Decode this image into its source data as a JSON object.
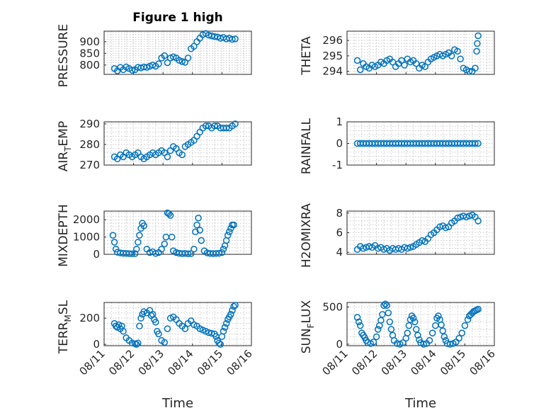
{
  "figure": {
    "title": "Figure 1 high",
    "time_label": "Time",
    "date_ticks": [
      "08/11",
      "08/12",
      "08/13",
      "08/14",
      "08/15",
      "08/16"
    ],
    "marker_color": "#0072bd"
  },
  "chart_data": [
    {
      "type": "scatter",
      "name": "pressure",
      "ylabel": "PRESSURE",
      "ylim": [
        760,
        945
      ],
      "yticks": [
        800,
        850,
        900
      ],
      "x": [
        11.35,
        11.45,
        11.55,
        11.65,
        11.75,
        11.85,
        11.95,
        12.05,
        12.15,
        12.25,
        12.35,
        12.45,
        12.55,
        12.65,
        12.75,
        12.85,
        12.95,
        13.05,
        13.15,
        13.25,
        13.35,
        13.45,
        13.55,
        13.65,
        13.75,
        13.85,
        13.95,
        14.05,
        14.15,
        14.25,
        14.35,
        14.45,
        14.55,
        14.65,
        14.75,
        14.85,
        14.95,
        15.05,
        15.15,
        15.25,
        15.35,
        15.45
      ],
      "y": [
        785,
        775,
        790,
        780,
        792,
        785,
        778,
        780,
        790,
        788,
        792,
        790,
        795,
        800,
        795,
        805,
        830,
        840,
        810,
        830,
        835,
        830,
        820,
        815,
        812,
        830,
        870,
        880,
        900,
        915,
        930,
        935,
        928,
        925,
        922,
        920,
        915,
        918,
        912,
        915,
        910,
        912
      ]
    },
    {
      "type": "scatter",
      "name": "theta",
      "ylabel": "THETA",
      "ylim": [
        293.8,
        296.6
      ],
      "yticks": [
        294,
        295,
        296
      ],
      "x": [
        11.35,
        11.45,
        11.55,
        11.65,
        11.75,
        11.85,
        11.95,
        12.05,
        12.15,
        12.25,
        12.35,
        12.45,
        12.55,
        12.65,
        12.75,
        12.85,
        12.95,
        13.05,
        13.15,
        13.25,
        13.35,
        13.45,
        13.55,
        13.65,
        13.75,
        13.85,
        13.95,
        14.05,
        14.15,
        14.25,
        14.35,
        14.45,
        14.55,
        14.65,
        14.75,
        14.85,
        14.95,
        15.05,
        15.15,
        15.25,
        15.35,
        15.4,
        15.42,
        15.45
      ],
      "y": [
        294.7,
        294.1,
        294.5,
        294.3,
        294.2,
        294.4,
        294.3,
        294.4,
        294.6,
        294.5,
        294.7,
        294.8,
        294.6,
        294.3,
        294.5,
        294.7,
        294.4,
        294.8,
        294.6,
        294.7,
        294.5,
        294.2,
        294.4,
        294.3,
        294.6,
        294.8,
        294.9,
        295.0,
        295.1,
        295.0,
        295.1,
        295.2,
        295.0,
        295.4,
        295.3,
        294.8,
        294.2,
        294.1,
        294.0,
        294.0,
        294.2,
        295.3,
        295.8,
        296.3
      ]
    },
    {
      "type": "scatter",
      "name": "air_temp",
      "ylabel": "AIR_TEMP",
      "ylim": [
        270,
        291
      ],
      "yticks": [
        270,
        280,
        290
      ],
      "x": [
        11.35,
        11.45,
        11.55,
        11.65,
        11.75,
        11.85,
        11.95,
        12.05,
        12.15,
        12.25,
        12.35,
        12.45,
        12.55,
        12.65,
        12.75,
        12.85,
        12.95,
        13.05,
        13.15,
        13.25,
        13.35,
        13.45,
        13.55,
        13.65,
        13.75,
        13.85,
        13.95,
        14.05,
        14.15,
        14.25,
        14.35,
        14.45,
        14.55,
        14.65,
        14.75,
        14.85,
        14.95,
        15.05,
        15.15,
        15.25,
        15.35,
        15.45
      ],
      "y": [
        274,
        273,
        275,
        274,
        276,
        275,
        274,
        275,
        276,
        274,
        273,
        274,
        275,
        276,
        275,
        276,
        277,
        276,
        274,
        277,
        279,
        278,
        276,
        275,
        279,
        280,
        281,
        282,
        284,
        286,
        288,
        289,
        289,
        288,
        289,
        289,
        288,
        288,
        288,
        288,
        289,
        290
      ]
    },
    {
      "type": "scatter",
      "name": "rainfall",
      "ylabel": "RAINFALL",
      "ylim": [
        -1,
        1
      ],
      "yticks": [
        -1,
        0,
        1
      ],
      "x": [
        11.35,
        11.45,
        11.55,
        11.65,
        11.75,
        11.85,
        11.95,
        12.05,
        12.15,
        12.25,
        12.35,
        12.45,
        12.55,
        12.65,
        12.75,
        12.85,
        12.95,
        13.05,
        13.15,
        13.25,
        13.35,
        13.45,
        13.55,
        13.65,
        13.75,
        13.85,
        13.95,
        14.05,
        14.15,
        14.25,
        14.35,
        14.45,
        14.55,
        14.65,
        14.75,
        14.85,
        14.95,
        15.05,
        15.15,
        15.25,
        15.35,
        15.45
      ],
      "y": [
        0,
        0,
        0,
        0,
        0,
        0,
        0,
        0,
        0,
        0,
        0,
        0,
        0,
        0,
        0,
        0,
        0,
        0,
        0,
        0,
        0,
        0,
        0,
        0,
        0,
        0,
        0,
        0,
        0,
        0,
        0,
        0,
        0,
        0,
        0,
        0,
        0,
        0,
        0,
        0,
        0,
        0
      ]
    },
    {
      "type": "scatter",
      "name": "mixdepth",
      "ylabel": "MIXDEPTH",
      "ylim": [
        0,
        2500
      ],
      "yticks": [
        0,
        1000,
        2000
      ],
      "x": [
        11.3,
        11.35,
        11.4,
        11.45,
        11.55,
        11.65,
        11.75,
        11.85,
        11.95,
        12.05,
        12.1,
        12.15,
        12.2,
        12.25,
        12.3,
        12.35,
        12.45,
        12.55,
        12.65,
        12.75,
        12.85,
        12.95,
        13.05,
        13.1,
        13.15,
        13.2,
        13.25,
        13.3,
        13.35,
        13.45,
        13.55,
        13.65,
        13.75,
        13.85,
        13.95,
        14.05,
        14.1,
        14.15,
        14.2,
        14.25,
        14.3,
        14.4,
        14.5,
        14.6,
        14.7,
        14.8,
        14.9,
        15.0,
        15.05,
        15.1,
        15.15,
        15.2,
        15.25,
        15.3,
        15.35,
        15.4
      ],
      "y": [
        1100,
        700,
        300,
        120,
        80,
        60,
        50,
        40,
        30,
        40,
        300,
        700,
        1100,
        1500,
        1800,
        1650,
        300,
        100,
        150,
        50,
        100,
        300,
        600,
        1000,
        2400,
        2350,
        2250,
        1000,
        200,
        100,
        60,
        40,
        50,
        30,
        40,
        300,
        1300,
        1700,
        2100,
        1400,
        800,
        200,
        80,
        50,
        40,
        50,
        60,
        100,
        300,
        500,
        800,
        1100,
        1300,
        1500,
        1700,
        1700
      ]
    },
    {
      "type": "scatter",
      "name": "h2omixra",
      "ylabel": "H2OMIXRA",
      "ylim": [
        3.8,
        8.2
      ],
      "yticks": [
        4,
        6,
        8
      ],
      "x": [
        11.35,
        11.45,
        11.55,
        11.65,
        11.75,
        11.85,
        11.95,
        12.05,
        12.15,
        12.25,
        12.35,
        12.45,
        12.55,
        12.65,
        12.75,
        12.85,
        12.95,
        13.05,
        13.15,
        13.25,
        13.35,
        13.45,
        13.55,
        13.65,
        13.75,
        13.85,
        13.95,
        14.05,
        14.15,
        14.25,
        14.35,
        14.45,
        14.55,
        14.65,
        14.75,
        14.85,
        14.95,
        15.05,
        15.15,
        15.25,
        15.35,
        15.45
      ],
      "y": [
        4.3,
        4.6,
        4.4,
        4.5,
        4.6,
        4.5,
        4.7,
        4.4,
        4.5,
        4.3,
        4.4,
        4.2,
        4.4,
        4.3,
        4.4,
        4.3,
        4.5,
        4.4,
        4.5,
        4.6,
        4.8,
        5.0,
        5.2,
        5.1,
        5.4,
        5.8,
        6.0,
        6.3,
        6.6,
        6.7,
        6.5,
        6.6,
        7.0,
        7.2,
        7.5,
        7.6,
        7.7,
        7.6,
        7.7,
        7.8,
        7.6,
        7.2
      ]
    },
    {
      "type": "scatter",
      "name": "terr_msl",
      "ylabel": "TERR_MSL",
      "ylim": [
        -10,
        320
      ],
      "yticks": [
        0,
        200
      ],
      "x": [
        11.35,
        11.4,
        11.45,
        11.5,
        11.55,
        11.6,
        11.65,
        11.75,
        11.85,
        11.95,
        12.05,
        12.1,
        12.15,
        12.2,
        12.25,
        12.3,
        12.35,
        12.45,
        12.55,
        12.6,
        12.65,
        12.7,
        12.75,
        12.8,
        12.85,
        12.95,
        13.05,
        13.15,
        13.25,
        13.35,
        13.45,
        13.55,
        13.65,
        13.75,
        13.85,
        13.95,
        14.05,
        14.15,
        14.25,
        14.35,
        14.45,
        14.55,
        14.65,
        14.75,
        14.8,
        14.85,
        14.9,
        14.95,
        15.0,
        15.05,
        15.1,
        15.15,
        15.2,
        15.25,
        15.3,
        15.35,
        15.4,
        15.45
      ],
      "y": [
        160,
        140,
        130,
        150,
        120,
        140,
        100,
        50,
        30,
        10,
        5,
        0,
        10,
        140,
        200,
        230,
        250,
        240,
        260,
        220,
        230,
        190,
        170,
        100,
        80,
        30,
        15,
        120,
        200,
        210,
        190,
        160,
        140,
        120,
        160,
        180,
        150,
        140,
        120,
        110,
        100,
        90,
        85,
        80,
        60,
        30,
        10,
        0,
        60,
        100,
        130,
        160,
        190,
        210,
        230,
        260,
        290,
        300
      ]
    },
    {
      "type": "scatter",
      "name": "sun_flux",
      "ylabel": "SUN_FLUX",
      "ylim": [
        -20,
        560
      ],
      "yticks": [
        0,
        500
      ],
      "x": [
        11.35,
        11.4,
        11.45,
        11.5,
        11.55,
        11.6,
        11.65,
        11.7,
        11.8,
        11.9,
        12.0,
        12.05,
        12.1,
        12.15,
        12.2,
        12.25,
        12.3,
        12.35,
        12.4,
        12.45,
        12.5,
        12.55,
        12.6,
        12.7,
        12.8,
        12.9,
        13.0,
        13.05,
        13.1,
        13.15,
        13.2,
        13.25,
        13.3,
        13.35,
        13.4,
        13.45,
        13.5,
        13.6,
        13.7,
        13.8,
        13.9,
        14.0,
        14.05,
        14.1,
        14.15,
        14.2,
        14.25,
        14.3,
        14.35,
        14.4,
        14.5,
        14.6,
        14.7,
        14.8,
        14.9,
        15.0,
        15.1,
        15.15,
        15.2,
        15.25,
        15.3,
        15.35,
        15.4,
        15.45
      ],
      "y": [
        360,
        300,
        250,
        150,
        120,
        90,
        50,
        20,
        10,
        30,
        100,
        200,
        250,
        320,
        400,
        520,
        540,
        520,
        420,
        300,
        200,
        120,
        50,
        10,
        0,
        20,
        80,
        150,
        250,
        330,
        380,
        350,
        300,
        200,
        120,
        60,
        20,
        0,
        10,
        50,
        150,
        250,
        350,
        380,
        330,
        260,
        180,
        100,
        50,
        10,
        0,
        10,
        30,
        80,
        150,
        250,
        330,
        380,
        400,
        420,
        440,
        450,
        460,
        470
      ]
    }
  ]
}
